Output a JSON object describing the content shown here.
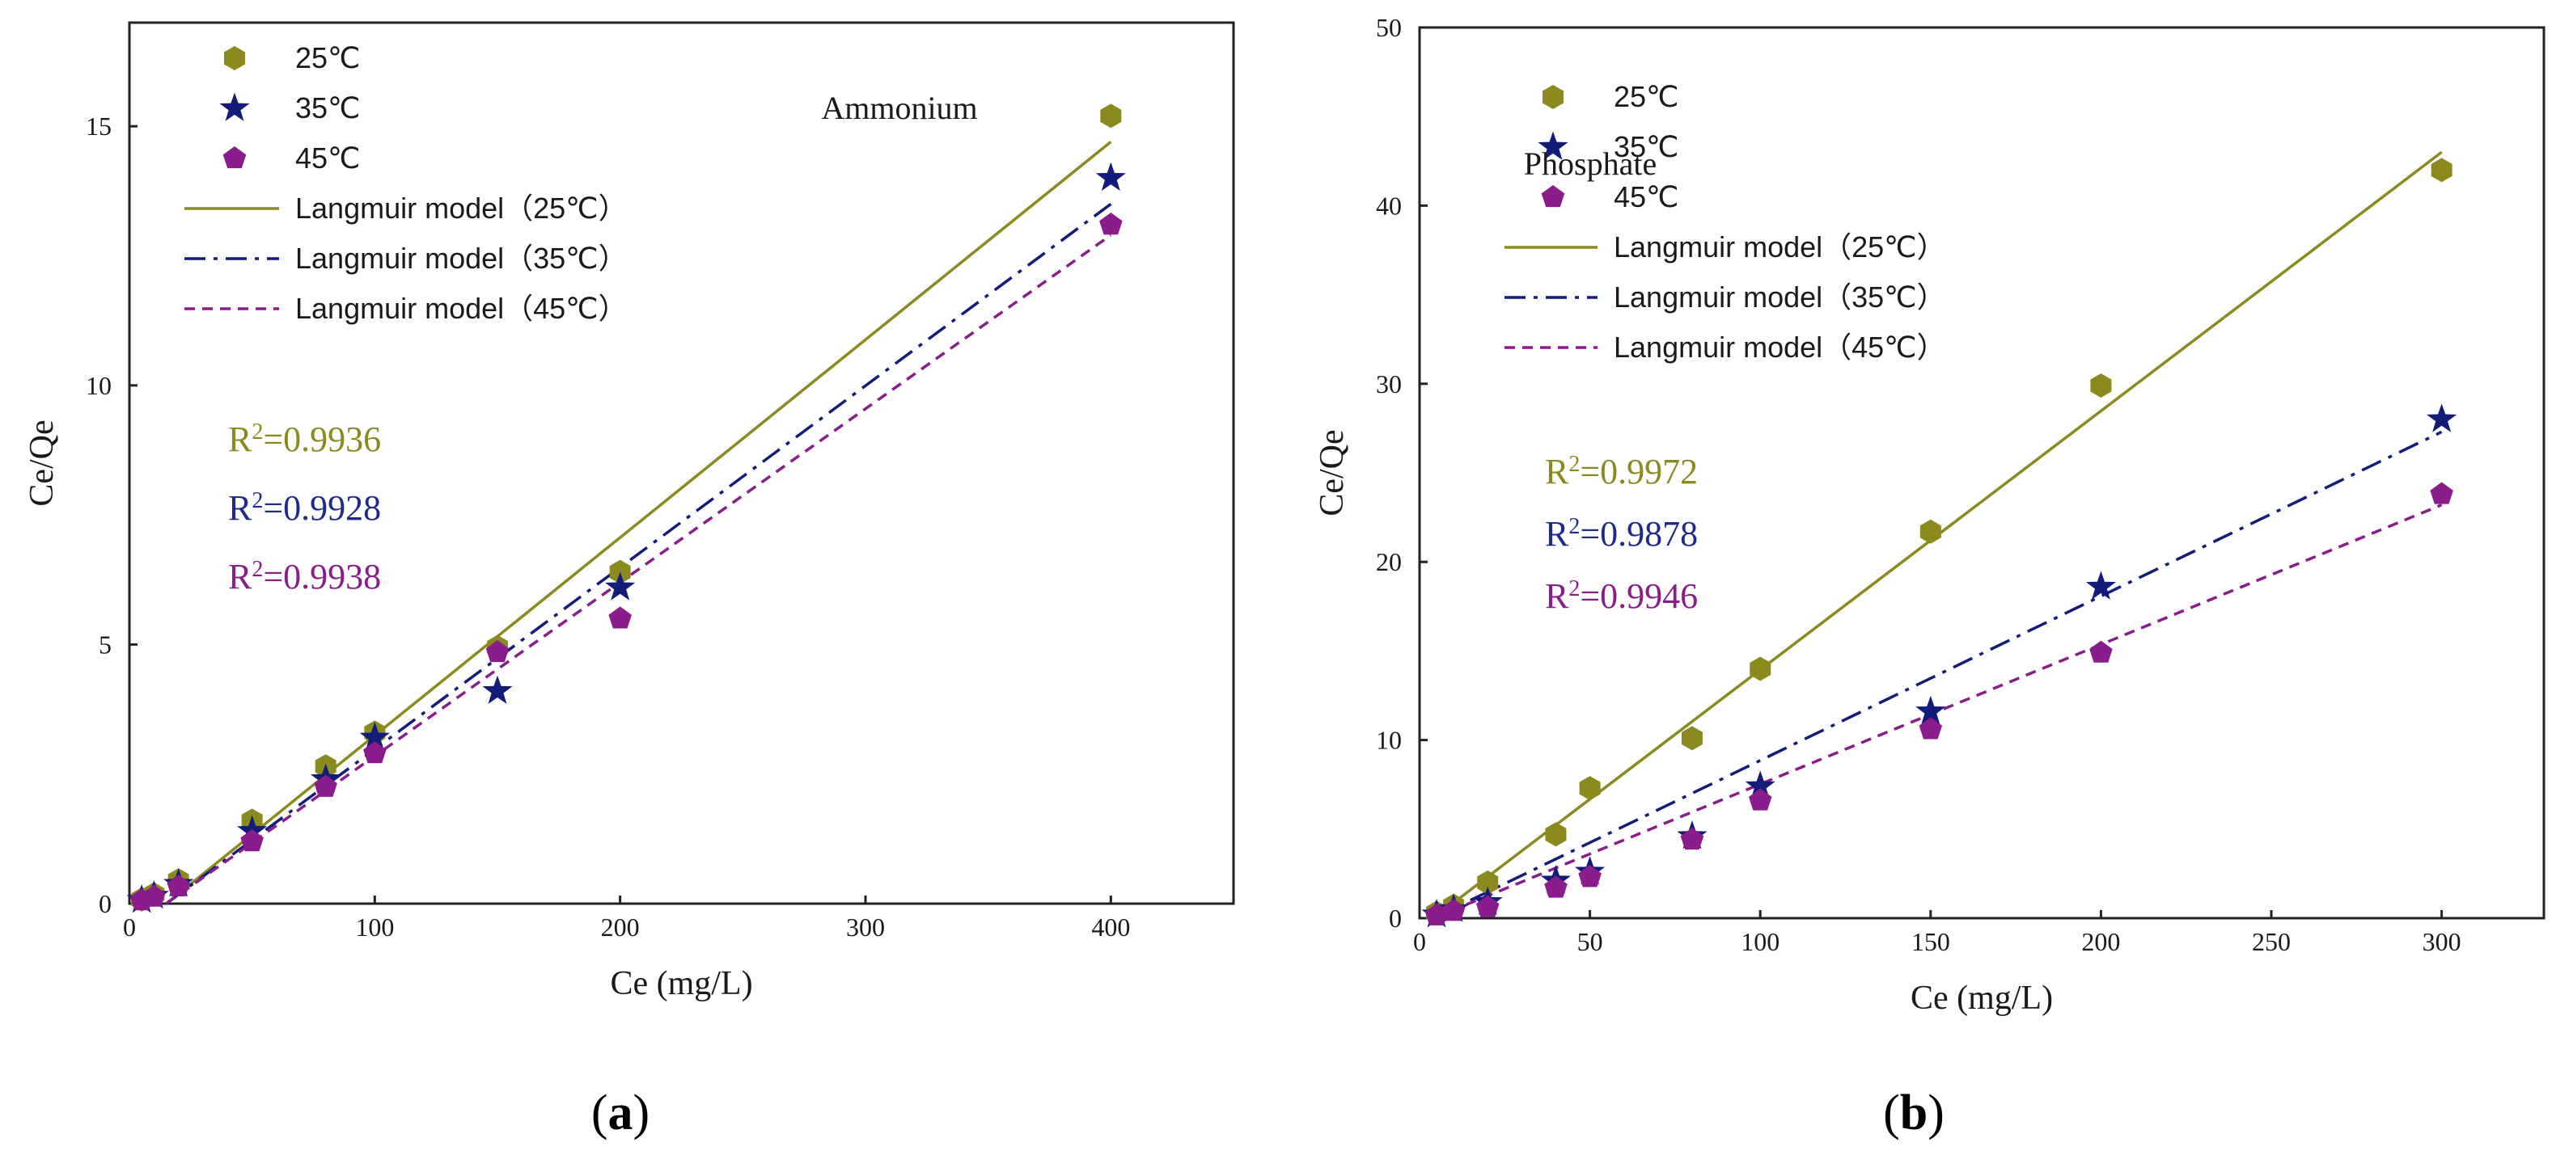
{
  "chart_data": [
    {
      "type": "scatter",
      "panel_label": "(a)",
      "title": "Ammonium",
      "xlabel": "Ce (mg/L)",
      "ylabel": "Ce/Qe",
      "xlim": [
        0,
        450
      ],
      "ylim": [
        0,
        17
      ],
      "xticks": [
        0,
        100,
        200,
        300,
        400
      ],
      "yticks": [
        0,
        5,
        10,
        15
      ],
      "series": [
        {
          "name": "25℃",
          "marker": "hexagon",
          "color": "#8b8a1f",
          "x": [
            5,
            10,
            20,
            50,
            80,
            100,
            150,
            200,
            400
          ],
          "y": [
            0.08,
            0.18,
            0.45,
            1.6,
            2.65,
            3.3,
            4.95,
            6.4,
            15.2
          ]
        },
        {
          "name": "35℃",
          "marker": "star",
          "color": "#141c7a",
          "x": [
            5,
            10,
            20,
            50,
            80,
            100,
            150,
            200,
            400
          ],
          "y": [
            0.07,
            0.15,
            0.38,
            1.4,
            2.4,
            3.2,
            4.1,
            6.1,
            14.0
          ]
        },
        {
          "name": "45℃",
          "marker": "pentagon",
          "color": "#8a1c8c",
          "x": [
            5,
            10,
            20,
            50,
            80,
            100,
            150,
            200,
            400
          ],
          "y": [
            0.06,
            0.13,
            0.33,
            1.2,
            2.25,
            2.9,
            4.85,
            5.5,
            13.1
          ]
        }
      ],
      "fits": [
        {
          "name": "Langmuir model（25℃）",
          "style": "solid",
          "color": "#8b8a1f",
          "x": [
            15,
            400
          ],
          "y": [
            0.0,
            14.7
          ]
        },
        {
          "name": "Langmuir model（35℃）",
          "style": "dashdot",
          "color": "#141c7a",
          "x": [
            15,
            400
          ],
          "y": [
            0.0,
            13.5
          ]
        },
        {
          "name": "Langmuir model（45℃）",
          "style": "dashed",
          "color": "#8a1c8c",
          "x": [
            15,
            400
          ],
          "y": [
            0.0,
            12.9
          ]
        }
      ],
      "r2": [
        {
          "prefix": "R",
          "sup": "2",
          "value": "=0.9936",
          "color": "#8b8a1f"
        },
        {
          "prefix": "R",
          "sup": "2",
          "value": "=0.9928",
          "color": "#1f2a8c"
        },
        {
          "prefix": "R",
          "sup": "2",
          "value": "=0.9938",
          "color": "#8a1c8c"
        }
      ]
    },
    {
      "type": "scatter",
      "panel_label": "(b)",
      "title": "Phosphate",
      "xlabel": "Ce (mg/L)",
      "ylabel": "Ce/Qe",
      "xlim": [
        0,
        330
      ],
      "ylim": [
        0,
        50
      ],
      "xticks": [
        0,
        50,
        100,
        150,
        200,
        250,
        300
      ],
      "yticks": [
        0,
        10,
        20,
        30,
        40,
        50
      ],
      "series": [
        {
          "name": "25℃",
          "marker": "hexagon",
          "color": "#8b8a1f",
          "x": [
            5,
            10,
            20,
            40,
            50,
            80,
            100,
            150,
            200,
            300
          ],
          "y": [
            0.3,
            0.7,
            2.0,
            4.7,
            7.3,
            10.1,
            14.0,
            21.7,
            29.9,
            42.0
          ]
        },
        {
          "name": "35℃",
          "marker": "star",
          "color": "#141c7a",
          "x": [
            5,
            10,
            20,
            40,
            50,
            80,
            100,
            150,
            200,
            300
          ],
          "y": [
            0.2,
            0.5,
            0.9,
            2.1,
            2.6,
            4.6,
            7.4,
            11.6,
            18.6,
            28.0
          ]
        },
        {
          "name": "45℃",
          "marker": "pentagon",
          "color": "#8a1c8c",
          "x": [
            5,
            10,
            20,
            40,
            50,
            80,
            100,
            150,
            200,
            300
          ],
          "y": [
            0.15,
            0.4,
            0.6,
            1.7,
            2.3,
            4.4,
            6.6,
            10.6,
            14.9,
            23.8
          ]
        }
      ],
      "fits": [
        {
          "name": "Langmuir model（25℃）",
          "style": "solid",
          "color": "#8b8a1f",
          "x": [
            4,
            300
          ],
          "y": [
            0.0,
            43.0
          ]
        },
        {
          "name": "Langmuir model（35℃）",
          "style": "dashdot",
          "color": "#141c7a",
          "x": [
            4,
            300
          ],
          "y": [
            0.0,
            27.3
          ]
        },
        {
          "name": "Langmuir model（45℃）",
          "style": "dashed",
          "color": "#8a1c8c",
          "x": [
            4,
            300
          ],
          "y": [
            0.0,
            23.2
          ]
        }
      ],
      "r2": [
        {
          "prefix": "R",
          "sup": "2",
          "value": "=0.9972",
          "color": "#8b8a1f"
        },
        {
          "prefix": "R",
          "sup": "2",
          "value": "=0.9878",
          "color": "#1f2a8c"
        },
        {
          "prefix": "R",
          "sup": "2",
          "value": "=0.9946",
          "color": "#8a1c8c"
        }
      ]
    }
  ]
}
